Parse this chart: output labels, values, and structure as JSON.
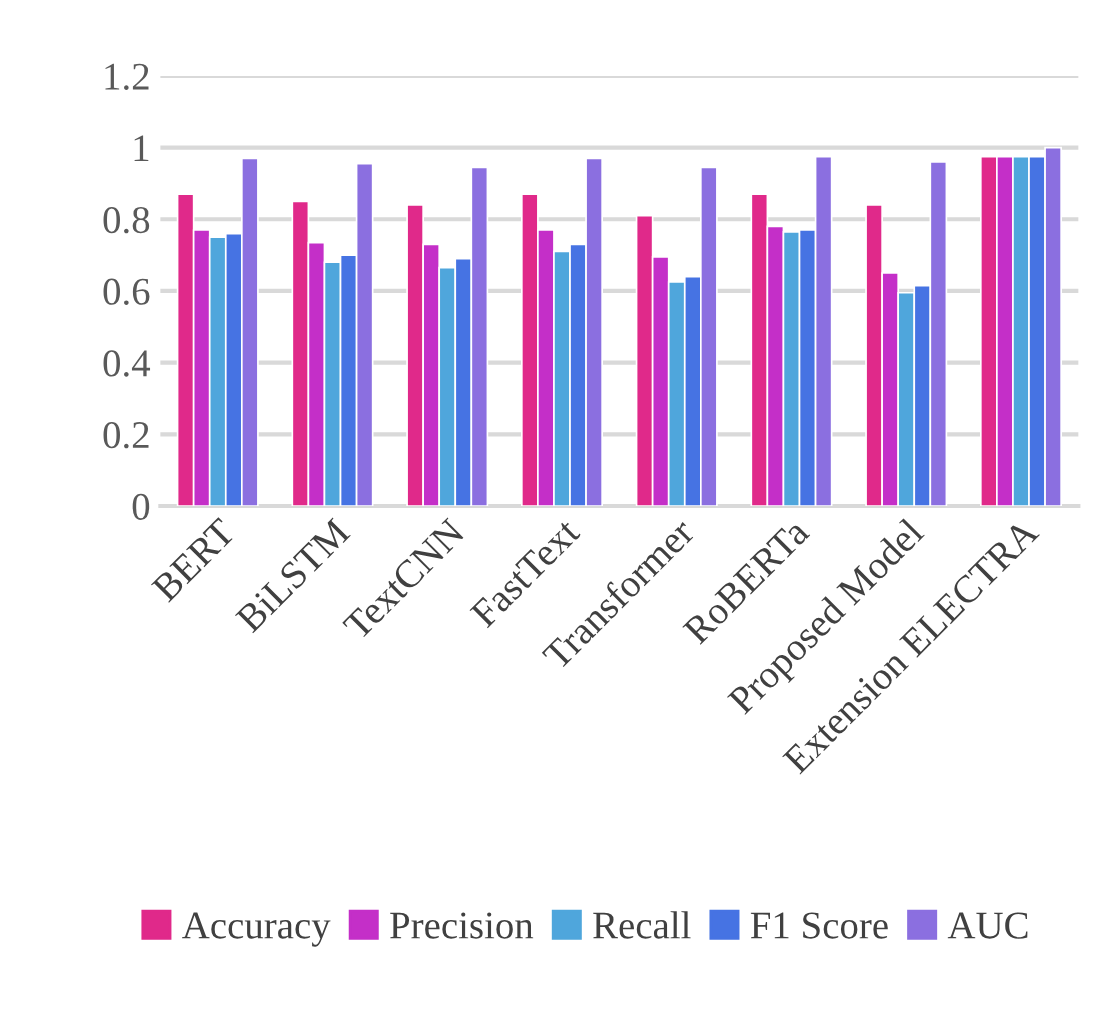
{
  "chart_data": {
    "type": "bar",
    "categories": [
      "BERT",
      "BiLSTM",
      "TextCNN",
      "FastText",
      "Transformer",
      "RoBERTa",
      "Proposed Model",
      "Extension ELECTRA"
    ],
    "series": [
      {
        "name": "Accuracy",
        "color": "#e0298a",
        "values": [
          0.87,
          0.85,
          0.84,
          0.87,
          0.81,
          0.87,
          0.84,
          0.975
        ]
      },
      {
        "name": "Precision",
        "color": "#c42fc8",
        "values": [
          0.77,
          0.735,
          0.73,
          0.77,
          0.695,
          0.78,
          0.65,
          0.975
        ]
      },
      {
        "name": "Recall",
        "color": "#4fa6dc",
        "values": [
          0.75,
          0.68,
          0.665,
          0.71,
          0.625,
          0.765,
          0.595,
          0.975
        ]
      },
      {
        "name": "F1 Score",
        "color": "#4673e3",
        "values": [
          0.76,
          0.7,
          0.69,
          0.73,
          0.64,
          0.77,
          0.615,
          0.975
        ]
      },
      {
        "name": "AUC",
        "color": "#8b6fe0",
        "values": [
          0.97,
          0.955,
          0.945,
          0.97,
          0.945,
          0.975,
          0.96,
          1.0
        ]
      }
    ],
    "ylim": [
      0,
      1.2
    ],
    "yticks": [
      0,
      0.2,
      0.4,
      0.6,
      0.8,
      1,
      1.2
    ],
    "grid": "y",
    "legend": "bottom"
  }
}
